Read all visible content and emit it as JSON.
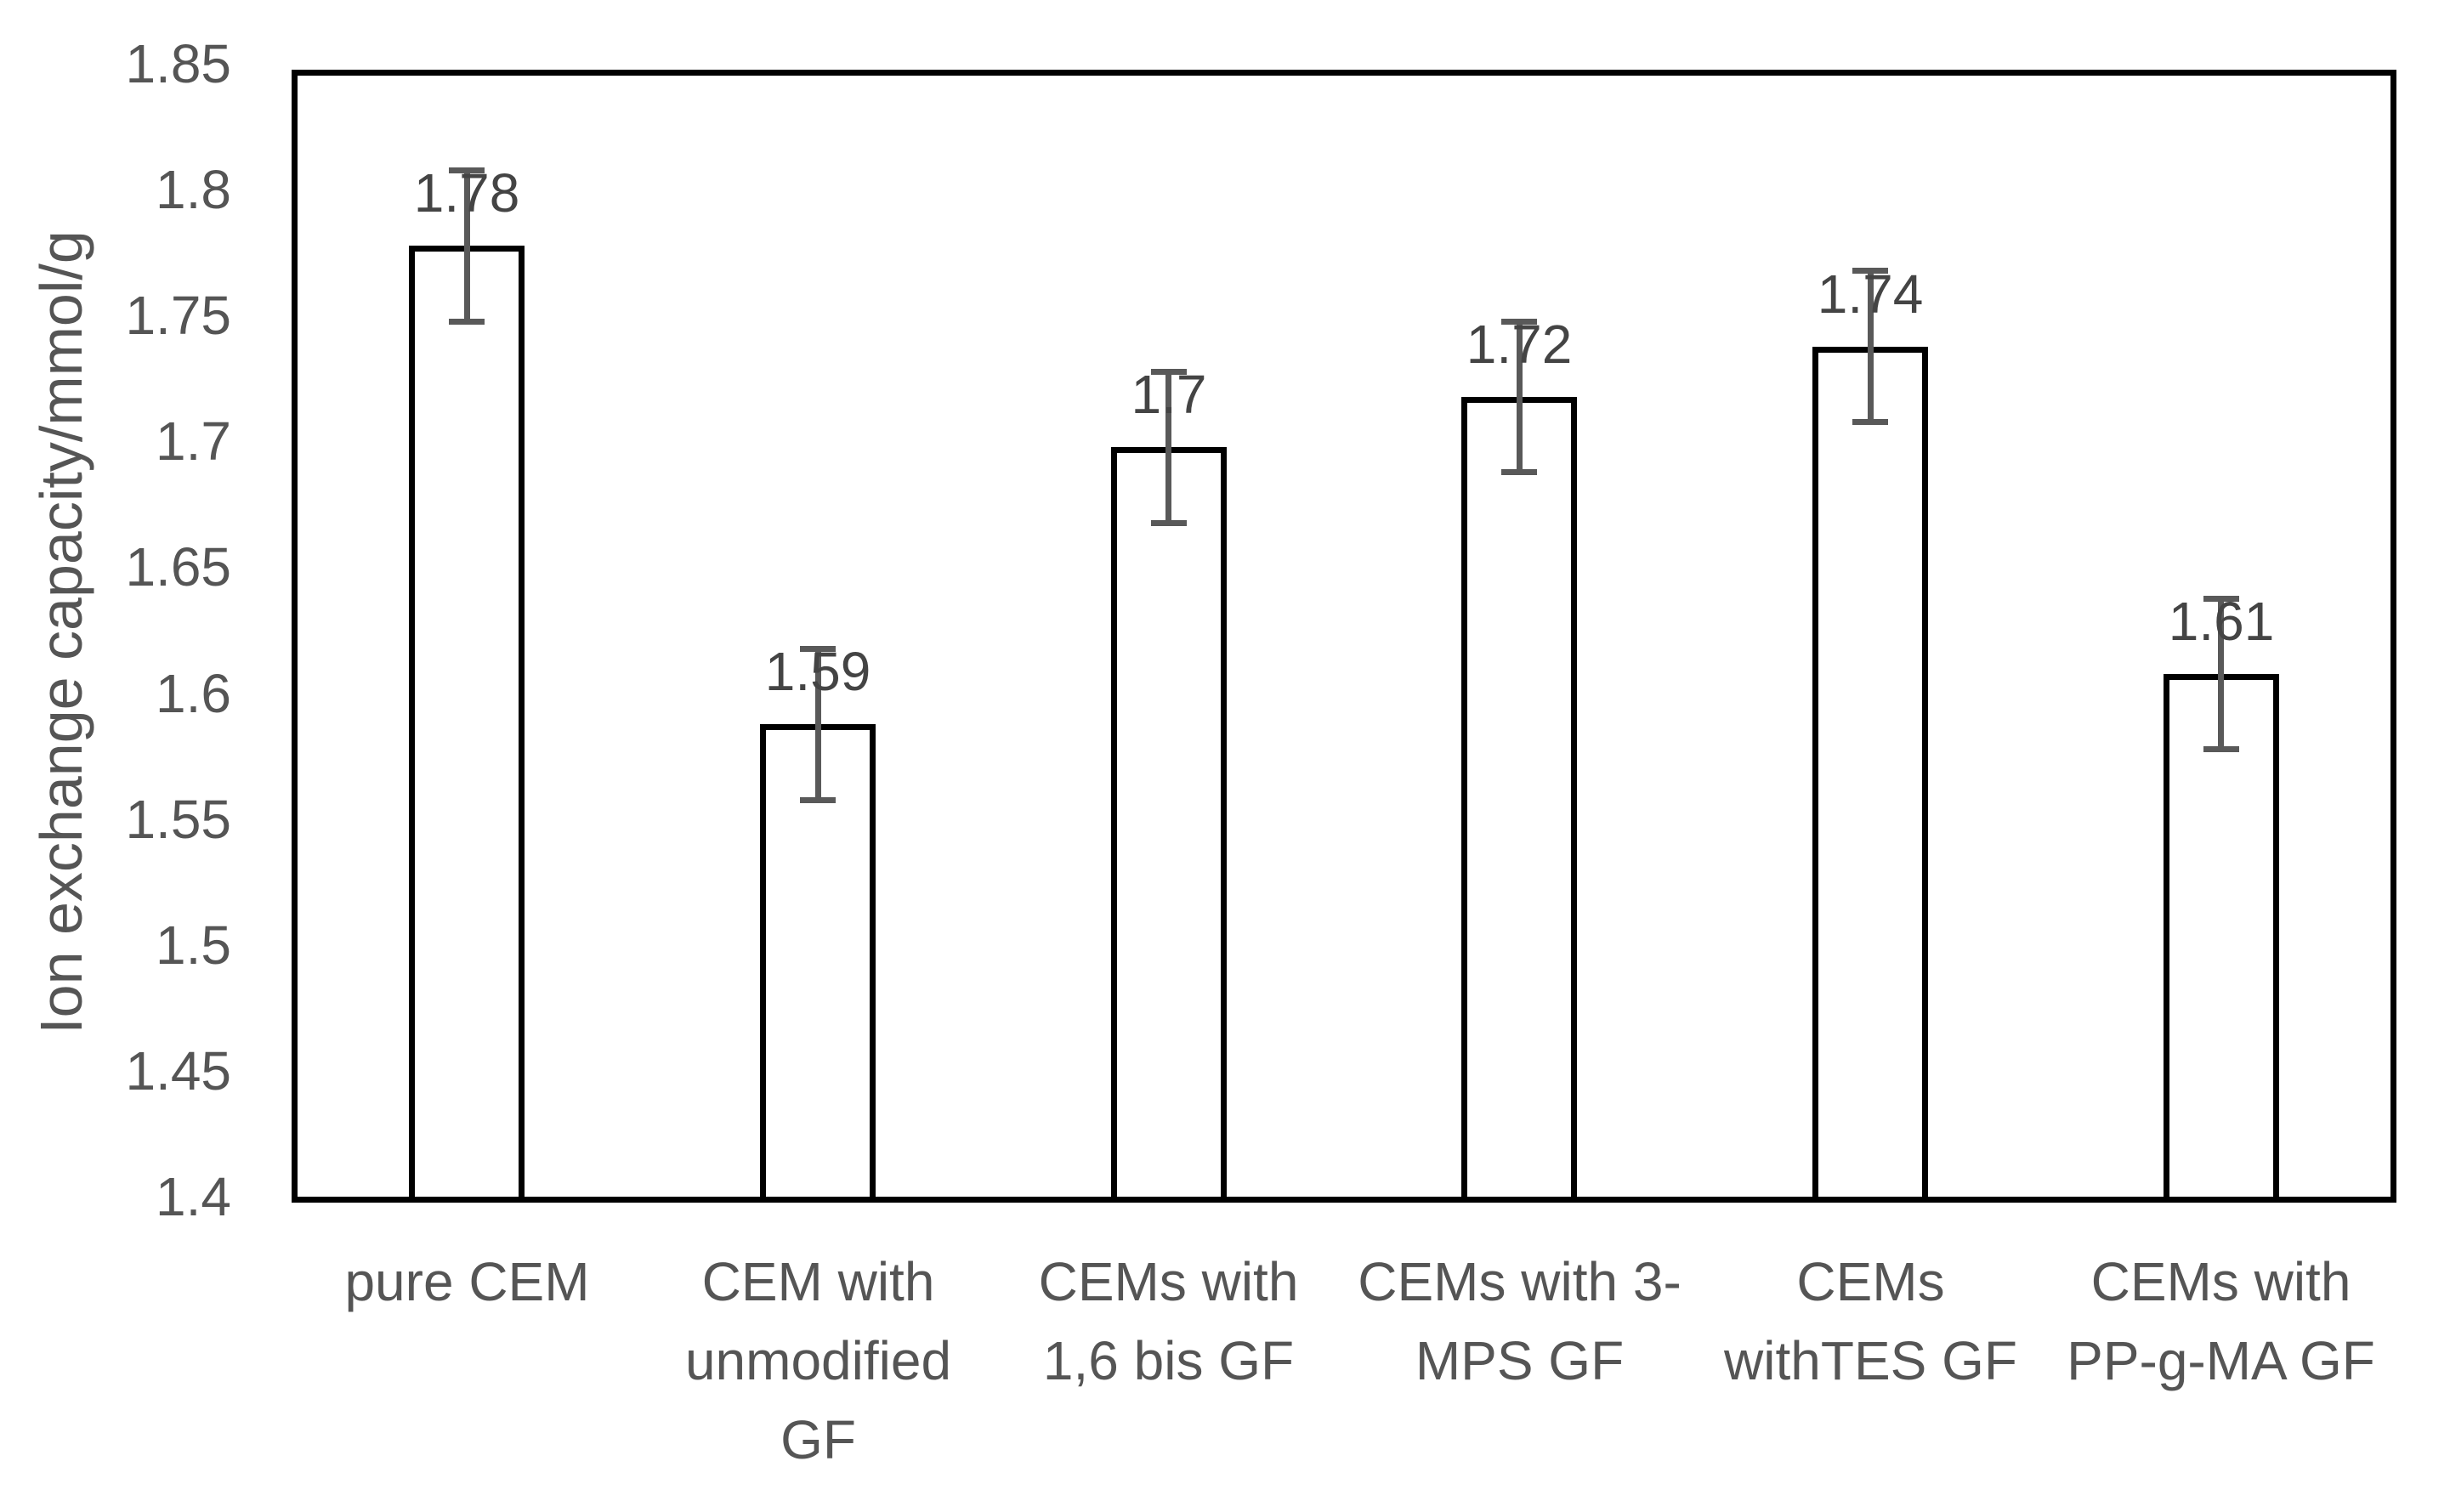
{
  "chart_data": {
    "type": "bar",
    "title": "",
    "xlabel": "",
    "ylabel": "Ion exchange capacity/mmol/g",
    "ylim": [
      1.4,
      1.85
    ],
    "grid": false,
    "legend": null,
    "y_ticks": [
      "1.4",
      "1.45",
      "1.5",
      "1.55",
      "1.6",
      "1.65",
      "1.7",
      "1.75",
      "1.8",
      "1.85"
    ],
    "categories": [
      "pure CEM",
      "CEM with\nunmodified\nGF",
      "CEMs with\n1,6 bis GF",
      "CEMs with 3-\nMPS GF",
      "CEMs\nwithTES GF",
      "CEMs with\nPP-g-MA GF"
    ],
    "values": [
      1.78,
      1.59,
      1.7,
      1.72,
      1.74,
      1.61
    ],
    "value_labels": [
      "1.78",
      "1.59",
      "1.7",
      "1.72",
      "1.74",
      "1.61"
    ],
    "error_bars": [
      0.03,
      0.03,
      0.03,
      0.03,
      0.03,
      0.03
    ],
    "bar_fill": "#ffffff",
    "bar_border_color": "#000000",
    "error_bar_color": "#595959",
    "text_color": "#555555"
  }
}
